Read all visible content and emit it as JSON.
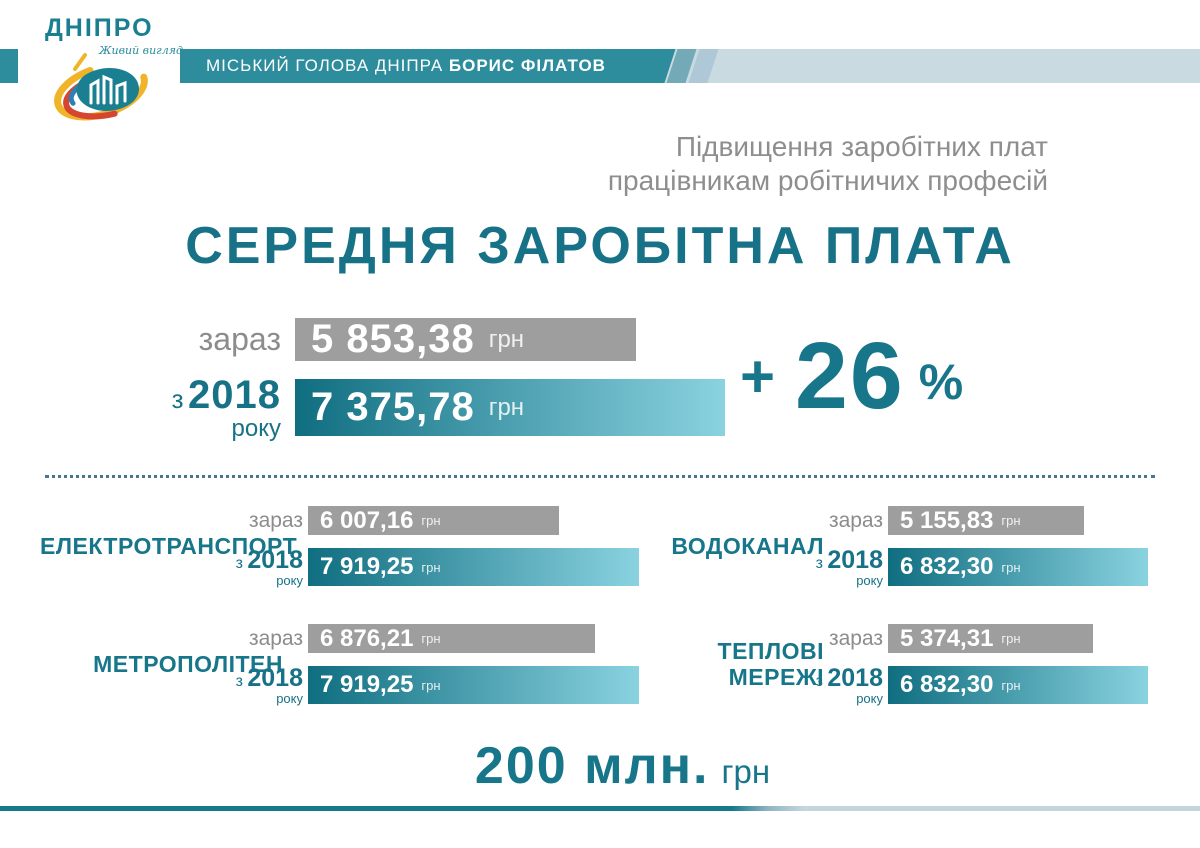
{
  "header": {
    "logo": {
      "title": "ДНІПРО",
      "tagline": "Живий вигляд"
    },
    "banner": {
      "text_regular": "МІСЬКИЙ ГОЛОВА ДНІПРА",
      "text_bold": "БОРИС ФІЛАТОВ"
    }
  },
  "intro": {
    "line1": "Підвищення заробітних плат",
    "line2": "працівникам робітничих професій"
  },
  "title": "СЕРЕДНЯ ЗАРОБІТНА ПЛАТА",
  "labels": {
    "now": "зараз",
    "since_prefix": "з",
    "since_year": "2018",
    "since_suffix": "року"
  },
  "chart_data": {
    "type": "bar",
    "title": "СЕРЕДНЯ ЗАРОБІТНА ПЛАТА",
    "subtitle": "Підвищення заробітних плат працівникам робітничих професій",
    "unit": "грн",
    "categories": [
      "зараз",
      "з 2018 року"
    ],
    "main": {
      "values": [
        5853.38,
        7375.78
      ],
      "value_labels": [
        "5 853,38",
        "7 375,78"
      ],
      "delta": {
        "plus": "+",
        "value": "26",
        "percent_sign": "%",
        "percent": 26
      }
    },
    "sections": [
      {
        "name": "ЕЛЕКТРОТРАНСПОРТ",
        "now": 6007.16,
        "since2018": 7919.25,
        "now_label": "6 007,16",
        "since_label": "7 919,25"
      },
      {
        "name": "ВОДОКАНАЛ",
        "now": 5155.83,
        "since2018": 6832.3,
        "now_label": "5 155,83",
        "since_label": "6 832,30"
      },
      {
        "name": "МЕТРОПОЛІТЕН",
        "now": 6876.21,
        "since2018": 7919.25,
        "now_label": "6 876,21",
        "since_label": "7 919,25"
      },
      {
        "name": "ТЕПЛОВІ МЕРЕЖІ",
        "now": 5374.31,
        "since2018": 6832.3,
        "now_label": "5 374,31",
        "since_label": "6 832,30"
      }
    ],
    "total": {
      "amount": "200 млн.",
      "unit": "грн"
    }
  },
  "colors": {
    "accent_teal": "#17768a",
    "banner_teal": "#2e8d9d",
    "bar_gray": "#9e9e9e",
    "bar_gradient_start": "#0f6e80",
    "bar_gradient_end": "#8ad2e0",
    "text_gray": "#8c8c8c"
  }
}
